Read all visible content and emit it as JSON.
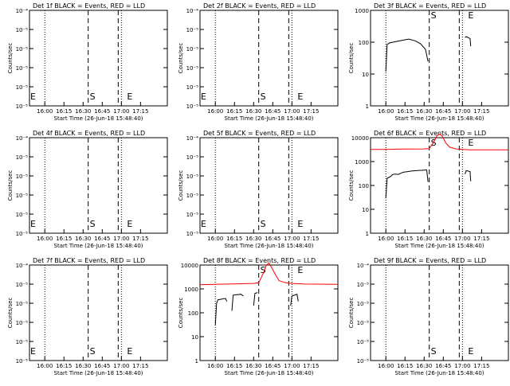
{
  "colors": {
    "events": "#000000",
    "lld": "#ff0000",
    "frame": "#000000"
  },
  "common": {
    "ylabel": "Counts/sec",
    "xlabel": "Start Time (26-Jun-18 15:48:40)",
    "x_ticks": [
      "16:00",
      "16:15",
      "16:30",
      "16:45",
      "17:00",
      "17:15"
    ],
    "marker_labels": {
      "start": "S",
      "end": "E"
    }
  },
  "chart_data": [
    {
      "type": "line",
      "title": "Det 1f BLACK = Events, RED = LLD",
      "y_scale": "log",
      "ylim": [
        1e-06,
        0.0001
      ],
      "y_ticks": [
        "10⁻⁴",
        "10⁻⁵",
        "10⁻⁵",
        "10⁻⁵",
        "10⁻⁵",
        "10⁻⁵"
      ],
      "xlim_min": [
        -12,
        96
      ],
      "dotted_lines_min": [
        0,
        60
      ],
      "dashed_lines_min": [
        34,
        60
      ],
      "s_label_min": 34,
      "e_label_min": 65,
      "left_e_label": true,
      "series": []
    },
    {
      "type": "line",
      "title": "Det 2f BLACK = Events, RED = LLD",
      "y_scale": "log",
      "ylim": [
        1e-06,
        0.0001
      ],
      "y_ticks": [
        "10⁻⁴",
        "10⁻⁵",
        "10⁻⁵",
        "10⁻⁵",
        "10⁻⁵",
        "10⁻⁵"
      ],
      "xlim_min": [
        -12,
        96
      ],
      "dotted_lines_min": [
        0,
        60
      ],
      "dashed_lines_min": [
        34,
        60
      ],
      "s_label_min": 34,
      "e_label_min": 65,
      "left_e_label": true,
      "series": []
    },
    {
      "type": "line",
      "title": "Det 3f BLACK = Events, RED = LLD",
      "y_scale": "log",
      "ylim": [
        1,
        1000
      ],
      "y_ticks": [
        "1000",
        "100",
        "10",
        "1"
      ],
      "xlim_min": [
        -12,
        96
      ],
      "dotted_lines_min": [
        0,
        60
      ],
      "dashed_lines_min": [
        34,
        60
      ],
      "s_label_min": 34,
      "e_label_min": 65,
      "left_e_label": false,
      "series": [
        {
          "name": "Events",
          "color": "#000000",
          "segments": [
            {
              "x": [
                0,
                1,
                3,
                8,
                13,
                18,
                23,
                27,
                31,
                33
              ],
              "y": [
                12,
                85,
                95,
                105,
                115,
                125,
                110,
                90,
                60,
                25
              ]
            },
            {
              "x": [
                62,
                63,
                66,
                66.5
              ],
              "y": [
                140,
                150,
                130,
                75
              ]
            }
          ]
        }
      ]
    },
    {
      "type": "line",
      "title": "Det 4f BLACK = Events, RED = LLD",
      "y_scale": "log",
      "ylim": [
        1e-06,
        0.0001
      ],
      "y_ticks": [
        "10⁻⁴",
        "10⁻⁵",
        "10⁻⁵",
        "10⁻⁵",
        "10⁻⁵",
        "10⁻⁵"
      ],
      "xlim_min": [
        -12,
        96
      ],
      "dotted_lines_min": [
        0,
        60
      ],
      "dashed_lines_min": [
        34,
        60
      ],
      "s_label_min": 34,
      "e_label_min": 65,
      "left_e_label": true,
      "series": []
    },
    {
      "type": "line",
      "title": "Det 5f BLACK = Events, RED = LLD",
      "y_scale": "log",
      "ylim": [
        1e-06,
        0.0001
      ],
      "y_ticks": [
        "10⁻⁴",
        "10⁻⁵",
        "10⁻⁵",
        "10⁻⁵",
        "10⁻⁵",
        "10⁻⁵"
      ],
      "xlim_min": [
        -12,
        96
      ],
      "dotted_lines_min": [
        0,
        60
      ],
      "dashed_lines_min": [
        34,
        60
      ],
      "s_label_min": 34,
      "e_label_min": 65,
      "left_e_label": true,
      "series": []
    },
    {
      "type": "line",
      "title": "Det 6f BLACK = Events, RED = LLD",
      "y_scale": "log",
      "ylim": [
        1,
        10000
      ],
      "y_ticks": [
        "10000",
        "1000",
        "100",
        "10",
        "1"
      ],
      "xlim_min": [
        -12,
        96
      ],
      "dotted_lines_min": [
        0,
        60
      ],
      "dashed_lines_min": [
        34,
        60
      ],
      "s_label_min": 34,
      "e_label_min": 65,
      "left_e_label": false,
      "series": [
        {
          "name": "LLD",
          "color": "#ff0000",
          "segments": [
            {
              "x": [
                -12,
                0,
                10,
                20,
                30,
                34,
                37,
                40,
                42,
                44,
                47,
                50,
                55,
                60,
                66,
                80,
                96
              ],
              "y": [
                3200,
                3200,
                3300,
                3350,
                3400,
                3500,
                6000,
                12000,
                14000,
                12000,
                6000,
                4000,
                3400,
                3200,
                3100,
                3100,
                3100
              ]
            }
          ]
        },
        {
          "name": "Events",
          "color": "#000000",
          "segments": [
            {
              "x": [
                0,
                1,
                4,
                5,
                7,
                10,
                12,
                14,
                17,
                20,
                22,
                25,
                28,
                30,
                32,
                33
              ],
              "y": [
                30,
                200,
                240,
                280,
                300,
                290,
                330,
                360,
                380,
                400,
                410,
                420,
                430,
                440,
                450,
                140
              ]
            },
            {
              "x": [
                62,
                63,
                66,
                66.5
              ],
              "y": [
                300,
                420,
                380,
                150
              ]
            }
          ]
        }
      ]
    },
    {
      "type": "line",
      "title": "Det 7f BLACK = Events, RED = LLD",
      "y_scale": "log",
      "ylim": [
        1e-06,
        0.0001
      ],
      "y_ticks": [
        "10⁻⁴",
        "10⁻⁵",
        "10⁻⁵",
        "10⁻⁵",
        "10⁻⁵",
        "10⁻⁵"
      ],
      "xlim_min": [
        -12,
        96
      ],
      "dotted_lines_min": [
        0,
        60
      ],
      "dashed_lines_min": [
        34,
        60
      ],
      "s_label_min": 34,
      "e_label_min": 65,
      "left_e_label": true,
      "series": []
    },
    {
      "type": "line",
      "title": "Det 8f BLACK = Events, RED = LLD",
      "y_scale": "log",
      "ylim": [
        1,
        10000
      ],
      "y_ticks": [
        "10000",
        "1000",
        "100",
        "10",
        "1"
      ],
      "xlim_min": [
        -12,
        96
      ],
      "dotted_lines_min": [
        0,
        60
      ],
      "dashed_lines_min": [
        34,
        60
      ],
      "s_label_min": 34,
      "e_label_min": 65,
      "left_e_label": false,
      "series": [
        {
          "name": "LLD",
          "color": "#ff0000",
          "segments": [
            {
              "x": [
                -12,
                0,
                10,
                20,
                30,
                34,
                38,
                40,
                42,
                44,
                47,
                50,
                55,
                60,
                70,
                96
              ],
              "y": [
                1500,
                1550,
                1600,
                1650,
                1700,
                1800,
                5000,
                10000,
                12000,
                8000,
                4000,
                2200,
                1800,
                1700,
                1600,
                1550
              ]
            }
          ]
        },
        {
          "name": "Events",
          "color": "#000000",
          "segments": [
            {
              "x": [
                0,
                1,
                2,
                8,
                9
              ],
              "y": [
                30,
                250,
                350,
                400,
                300
              ]
            },
            {
              "x": [
                13,
                14,
                20,
                22
              ],
              "y": [
                120,
                550,
                600,
                500
              ]
            },
            {
              "x": [
                30,
                31,
                33
              ],
              "y": [
                200,
                650,
                700
              ]
            },
            {
              "x": [
                59,
                60,
                64,
                65
              ],
              "y": [
                200,
                500,
                600,
                300
              ]
            }
          ]
        }
      ]
    },
    {
      "type": "line",
      "title": "Det 9f BLACK = Events, RED = LLD",
      "y_scale": "log",
      "ylim": [
        1e-06,
        0.0001
      ],
      "y_ticks": [
        "10⁻⁴",
        "10⁻⁵",
        "10⁻⁵",
        "10⁻⁵",
        "10⁻⁵",
        "10⁻⁵"
      ],
      "xlim_min": [
        -12,
        96
      ],
      "dotted_lines_min": [
        0,
        60
      ],
      "dashed_lines_min": [
        34,
        60
      ],
      "s_label_min": 34,
      "e_label_min": 65,
      "left_e_label": false,
      "series": []
    }
  ]
}
